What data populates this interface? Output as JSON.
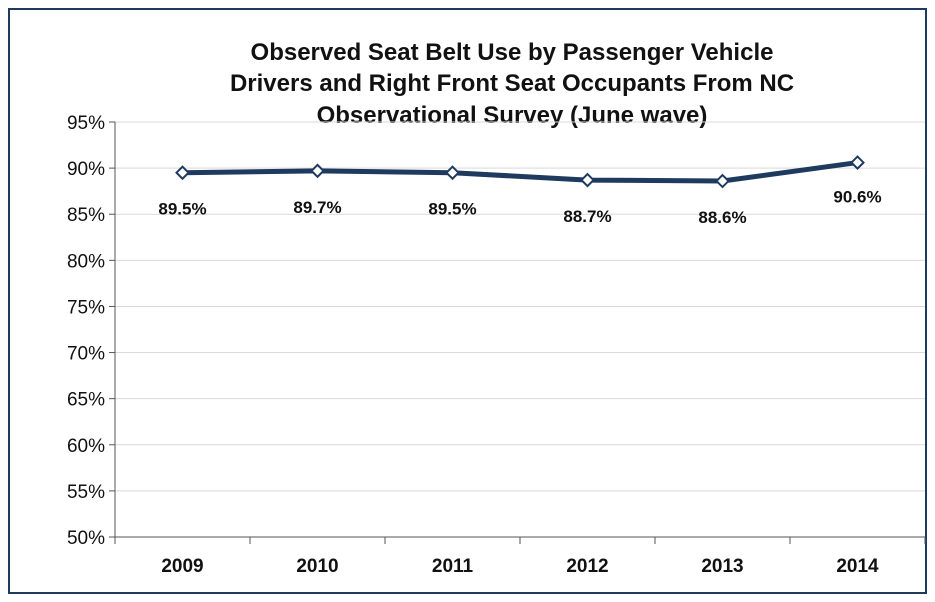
{
  "chart_data": {
    "type": "line",
    "title_lines": [
      "Observed Seat Belt Use by Passenger Vehicle",
      "Drivers and Right Front Seat Occupants From NC",
      "Observational Survey (June wave)"
    ],
    "categories": [
      "2009",
      "2010",
      "2011",
      "2012",
      "2013",
      "2014"
    ],
    "series": [
      {
        "values": [
          89.5,
          89.7,
          89.5,
          88.7,
          88.6,
          90.6
        ]
      }
    ],
    "data_labels": [
      "89.5%",
      "89.7%",
      "89.5%",
      "88.7%",
      "88.6%",
      "90.6%"
    ],
    "y_ticks": [
      "50%",
      "55%",
      "60%",
      "65%",
      "70%",
      "75%",
      "80%",
      "85%",
      "90%",
      "95%"
    ],
    "ylim": [
      50,
      95
    ],
    "grid": true,
    "legend": "none",
    "colors": {
      "line": "#1f3a5f",
      "marker_fill": "#ffffff",
      "grid": "#d9d9d9",
      "border": "#1f3a5f"
    }
  }
}
